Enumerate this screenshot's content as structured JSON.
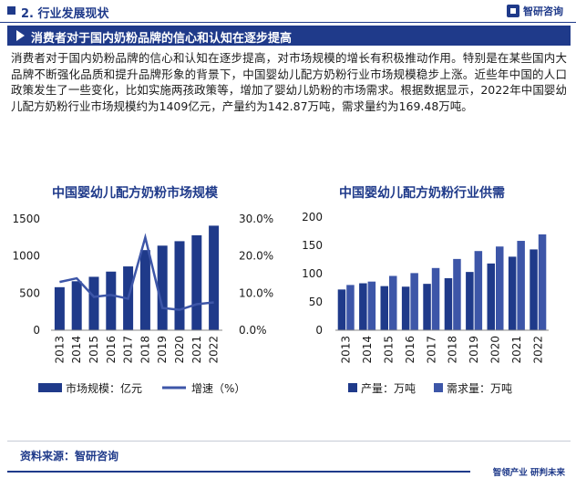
{
  "header": {
    "section": "2. 行业发展现状",
    "logo_text": "智研咨询"
  },
  "banner": {
    "title": "消费者对于国内奶粉品牌的信心和认知在逐步提高"
  },
  "paragraph": "消费者对于国内奶粉品牌的信心和认知在逐步提高，对市场规模的增长有积极推动作用。特别是在某些国内大品牌不断强化品质和提升品牌形象的背景下，中国婴幼儿配方奶粉行业市场规模稳步上涨。近些年中国的人口政策发生了一些变化，比如实施两孩政策等，增加了婴幼儿奶粉的市场需求。根据数据显示，2022年中国婴幼儿配方奶粉行业市场规模约为1409亿元，产量约为142.87万吨，需求量约为169.48万吨。",
  "chart_data": [
    {
      "type": "bar",
      "title": "中国婴幼儿配方奶粉市场规模",
      "categories": [
        "2013",
        "2014",
        "2015",
        "2016",
        "2017",
        "2018",
        "2019",
        "2020",
        "2021",
        "2022"
      ],
      "series": [
        {
          "name": "市场规模：亿元",
          "kind": "bar",
          "axis": "left",
          "color": "#1f3a8a",
          "values": [
            580,
            660,
            720,
            790,
            860,
            1080,
            1140,
            1200,
            1280,
            1409
          ]
        },
        {
          "name": "增速（%）",
          "kind": "line",
          "axis": "right",
          "color": "#3d56a8",
          "values": [
            13.0,
            14.0,
            9.0,
            9.5,
            8.5,
            25.0,
            6.0,
            5.5,
            7.0,
            7.5
          ]
        }
      ],
      "y_left": {
        "ticks": [
          0,
          500,
          1000,
          1500
        ],
        "labels": [
          "0",
          "500",
          "1000",
          "1500"
        ],
        "ylim": [
          0,
          1500
        ]
      },
      "y_right": {
        "ticks": [
          0,
          10,
          20,
          30
        ],
        "labels": [
          "0.0%",
          "10.0%",
          "20.0%",
          "30.0%"
        ],
        "ylim": [
          0,
          30
        ]
      },
      "grid": false,
      "legend": "bottom"
    },
    {
      "type": "bar",
      "title": "中国婴幼儿配方奶粉行业供需",
      "categories": [
        "2013",
        "2014",
        "2015",
        "2016",
        "2017",
        "2018",
        "2019",
        "2020",
        "2021",
        "2022"
      ],
      "series": [
        {
          "name": "产量：万吨",
          "color": "#1f3a8a",
          "values": [
            72,
            83,
            78,
            77,
            82,
            92,
            103,
            118,
            130,
            142.87
          ]
        },
        {
          "name": "需求量：万吨",
          "color": "#3d56a8",
          "values": [
            80,
            86,
            96,
            101,
            110,
            126,
            140,
            148,
            158,
            169.48
          ]
        }
      ],
      "y_left": {
        "ticks": [
          0,
          50,
          100,
          150,
          200
        ],
        "labels": [
          "0",
          "50",
          "100",
          "150",
          "200"
        ],
        "ylim": [
          0,
          200
        ]
      },
      "grid": false,
      "legend": "bottom"
    }
  ],
  "footer": {
    "source": "资料来源：智研咨询",
    "slogan": "智领产业  研判未来"
  }
}
